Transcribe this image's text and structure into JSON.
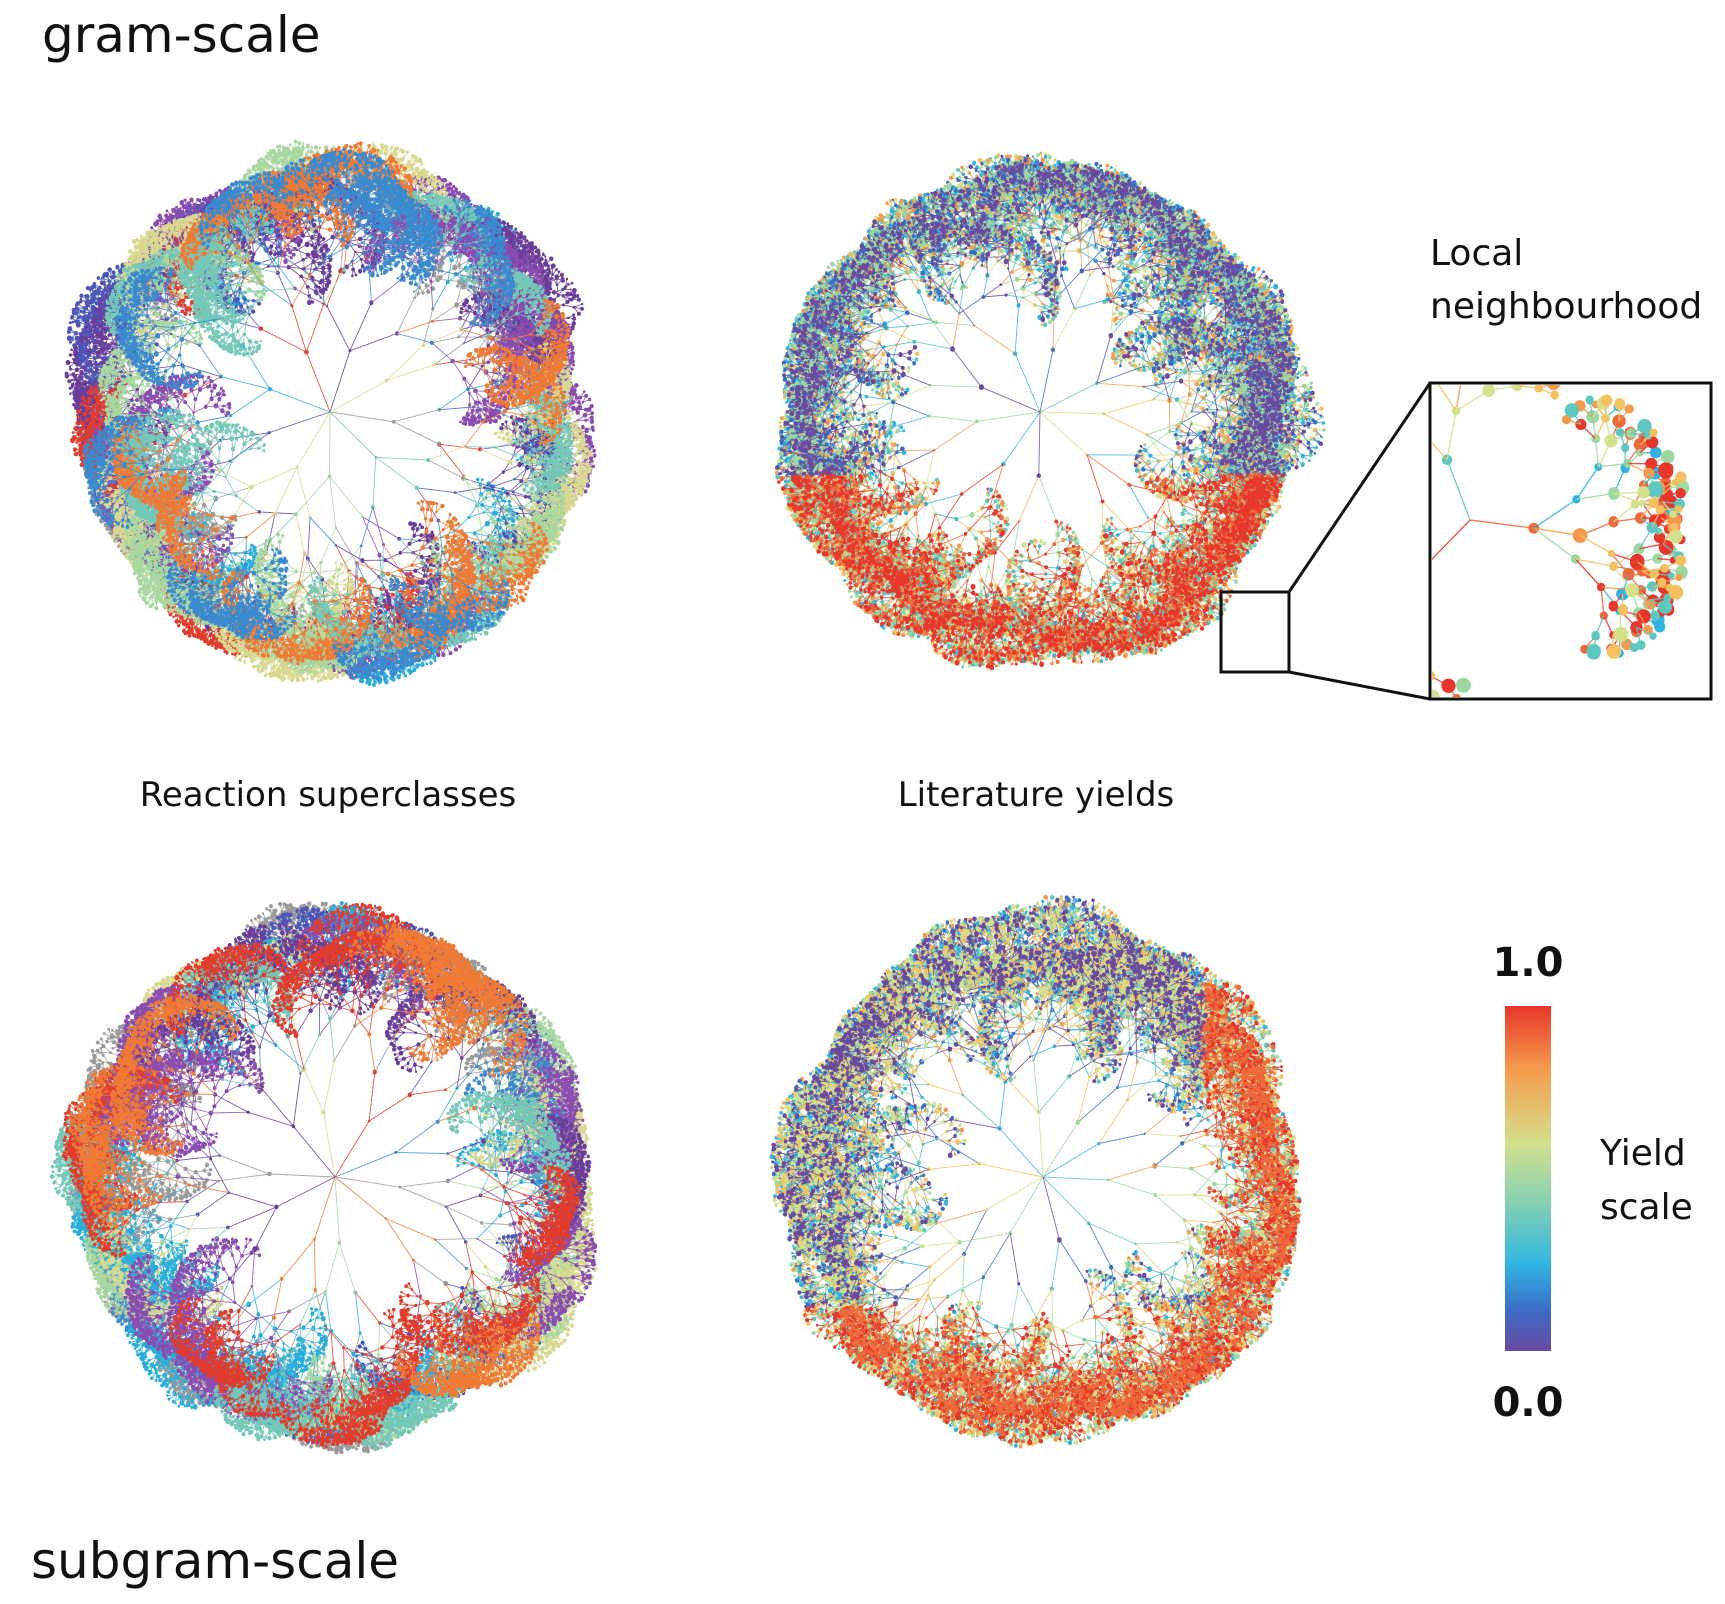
{
  "row_labels": {
    "top": "gram-scale",
    "bottom": "subgram-scale"
  },
  "column_labels": [
    "Reaction superclasses",
    "Literature yields"
  ],
  "inset_label": [
    "Local",
    "neighbourhood"
  ],
  "colorbar": {
    "max_label": "1.0",
    "min_label": "0.0",
    "title": [
      "Yield",
      "scale"
    ]
  }
}
